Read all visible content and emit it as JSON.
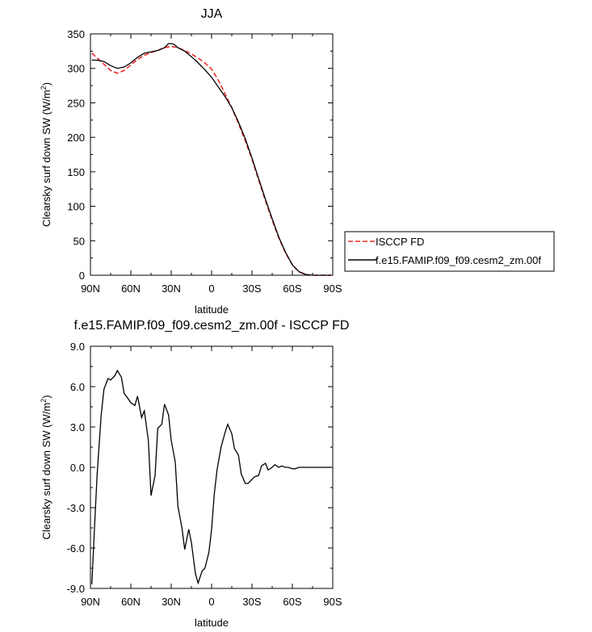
{
  "chart_data": [
    {
      "type": "line",
      "title": "JJA",
      "xlabel": "latitude",
      "ylabel": "Clearsky surf down SW (W/m²)",
      "ylabel_parts": [
        "Clearsky surf down SW (W/m",
        "2",
        ")"
      ],
      "xlim": [
        -90,
        90
      ],
      "ylim": [
        0,
        350
      ],
      "x_ticks": [
        -90,
        -60,
        -30,
        0,
        30,
        60,
        90
      ],
      "x_tick_labels": [
        "90N",
        "60N",
        "30N",
        "0",
        "30S",
        "60S",
        "90S"
      ],
      "y_ticks": [
        0,
        50,
        100,
        150,
        200,
        250,
        300,
        350
      ],
      "y_tick_labels": [
        "0",
        "50",
        "100",
        "150",
        "200",
        "250",
        "300",
        "350"
      ],
      "legend_position": "outside-right",
      "series": [
        {
          "name": "ISCCP FD",
          "color": "#ee2b2b",
          "dash": "dashed",
          "x": [
            -89,
            -85,
            -80,
            -75,
            -70,
            -65,
            -60,
            -55,
            -50,
            -45,
            -40,
            -35,
            -30,
            -25,
            -20,
            -15,
            -10,
            -5,
            0,
            5,
            10,
            15,
            20,
            25,
            30,
            35,
            40,
            45,
            50,
            55,
            60,
            65,
            70,
            75,
            80,
            85,
            89
          ],
          "y": [
            322,
            315,
            306,
            297,
            293,
            297,
            305,
            313,
            319,
            323,
            326,
            330,
            332,
            330,
            326,
            321,
            315,
            308,
            299,
            283,
            263,
            243,
            220,
            195,
            168,
            138,
            108,
            80,
            54,
            32,
            15,
            5,
            1,
            0,
            0,
            0,
            0
          ]
        },
        {
          "name": "f.e15.FAMIP.f09_f09.cesm2_zm.00f",
          "color": "#000000",
          "dash": "solid",
          "x": [
            -89,
            -85,
            -80,
            -75,
            -70,
            -65,
            -60,
            -55,
            -50,
            -45,
            -40,
            -35,
            -32,
            -30,
            -28,
            -25,
            -20,
            -15,
            -10,
            -5,
            0,
            5,
            10,
            15,
            20,
            25,
            30,
            35,
            40,
            45,
            50,
            55,
            60,
            65,
            70,
            75,
            80,
            85,
            89
          ],
          "y": [
            312,
            312,
            310,
            304,
            300,
            302,
            308,
            316,
            322,
            324,
            326,
            330,
            336,
            336,
            335,
            330,
            325,
            317,
            308,
            298,
            287,
            273,
            259,
            243,
            222,
            198,
            170,
            140,
            110,
            82,
            55,
            33,
            15,
            5,
            1,
            0,
            0,
            0,
            0
          ]
        }
      ]
    },
    {
      "type": "line",
      "title": "f.e15.FAMIP.f09_f09.cesm2_zm.00f - ISCCP FD",
      "xlabel": "latitude",
      "ylabel": "Clearsky surf down SW (W/m²)",
      "ylabel_parts": [
        "Clearsky surf down SW (W/m",
        "2",
        ")"
      ],
      "xlim": [
        -90,
        90
      ],
      "ylim": [
        -9,
        9
      ],
      "x_ticks": [
        -90,
        -60,
        -30,
        0,
        30,
        60,
        90
      ],
      "x_tick_labels": [
        "90N",
        "60N",
        "30N",
        "0",
        "30S",
        "60S",
        "90S"
      ],
      "y_ticks": [
        -9,
        -6,
        -3,
        0,
        3,
        6,
        9
      ],
      "y_tick_labels": [
        "-9.0",
        "-6.0",
        "-3.0",
        "0.0",
        "3.0",
        "6.0",
        "9.0"
      ],
      "series": [
        {
          "color": "#000000",
          "dash": "solid",
          "x": [
            -89,
            -87,
            -85,
            -82,
            -80,
            -77,
            -75,
            -72,
            -70,
            -67,
            -65,
            -62,
            -60,
            -57,
            -55,
            -52,
            -50,
            -47,
            -45,
            -42,
            -40,
            -37,
            -35,
            -32,
            -30,
            -27,
            -25,
            -22,
            -20,
            -17,
            -15,
            -12,
            -10,
            -7,
            -5,
            -2,
            0,
            2,
            4,
            7,
            10,
            12,
            15,
            17,
            20,
            22,
            25,
            27,
            30,
            32,
            35,
            37,
            40,
            42,
            45,
            47,
            50,
            52,
            55,
            57,
            60,
            62,
            65,
            67,
            70,
            72,
            75,
            77,
            80,
            82,
            85,
            87,
            89
          ],
          "y": [
            -8.7,
            -4.5,
            -0.5,
            3.9,
            5.8,
            6.6,
            6.5,
            6.8,
            7.2,
            6.7,
            5.5,
            5.1,
            4.8,
            4.6,
            5.3,
            3.7,
            4.2,
            2.0,
            -2.1,
            -0.6,
            2.9,
            3.2,
            4.7,
            3.9,
            2.0,
            0.4,
            -2.9,
            -4.5,
            -6.1,
            -4.6,
            -5.6,
            -7.9,
            -8.6,
            -7.7,
            -7.5,
            -6.3,
            -4.6,
            -2.0,
            -0.2,
            1.5,
            2.6,
            3.2,
            2.5,
            1.4,
            0.9,
            -0.5,
            -1.2,
            -1.2,
            -0.9,
            -0.7,
            -0.6,
            0.1,
            0.3,
            -0.2,
            0.0,
            0.2,
            0.0,
            0.1,
            0.0,
            0.0,
            -0.1,
            -0.1,
            0.0,
            0.0,
            0.0,
            0.0,
            0.0,
            0.0,
            0.0,
            0.0,
            0.0,
            0.0,
            0.0
          ]
        }
      ]
    }
  ]
}
